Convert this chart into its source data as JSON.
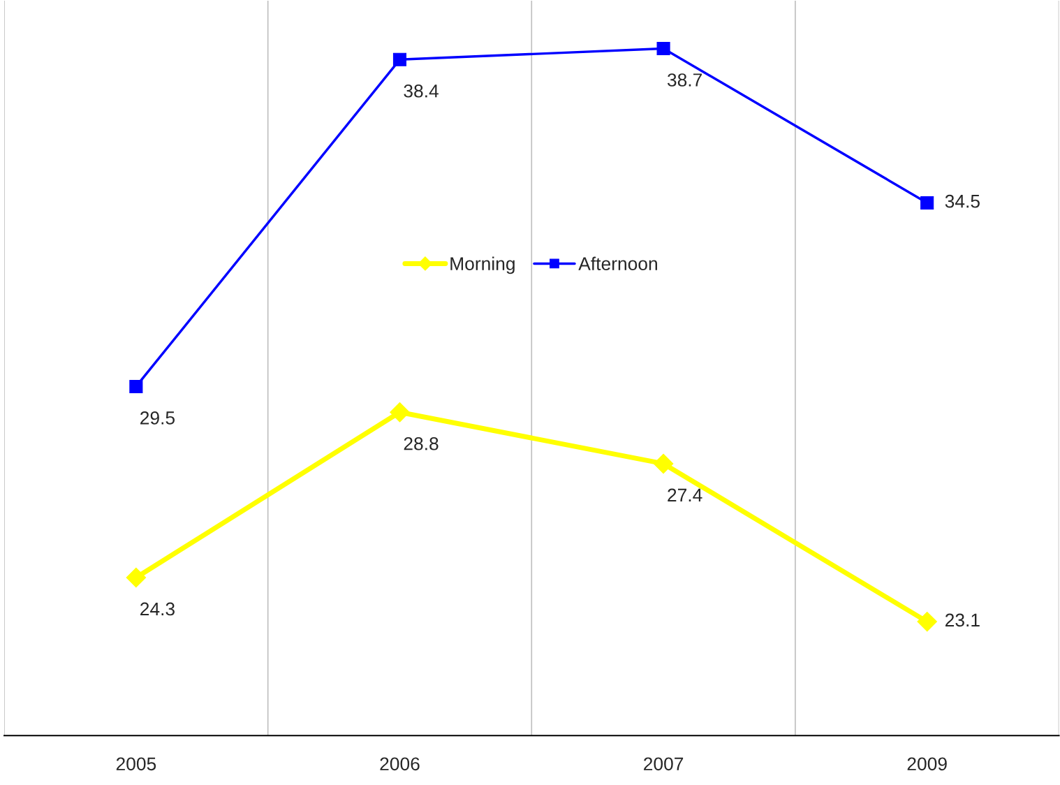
{
  "chart_data": {
    "type": "line",
    "categories": [
      "2005",
      "2006",
      "2007",
      "2009"
    ],
    "series": [
      {
        "name": "Morning",
        "color": "#ffff00",
        "marker": "diamond",
        "values": [
          24.3,
          28.8,
          27.4,
          23.1
        ]
      },
      {
        "name": "Afternoon",
        "color": "#0000ff",
        "marker": "square",
        "values": [
          29.5,
          38.4,
          38.7,
          34.5
        ]
      }
    ],
    "ylim": [
      20,
      40
    ],
    "tick_labels": "x",
    "data_labels": true,
    "grid": "x",
    "legend": "center"
  }
}
